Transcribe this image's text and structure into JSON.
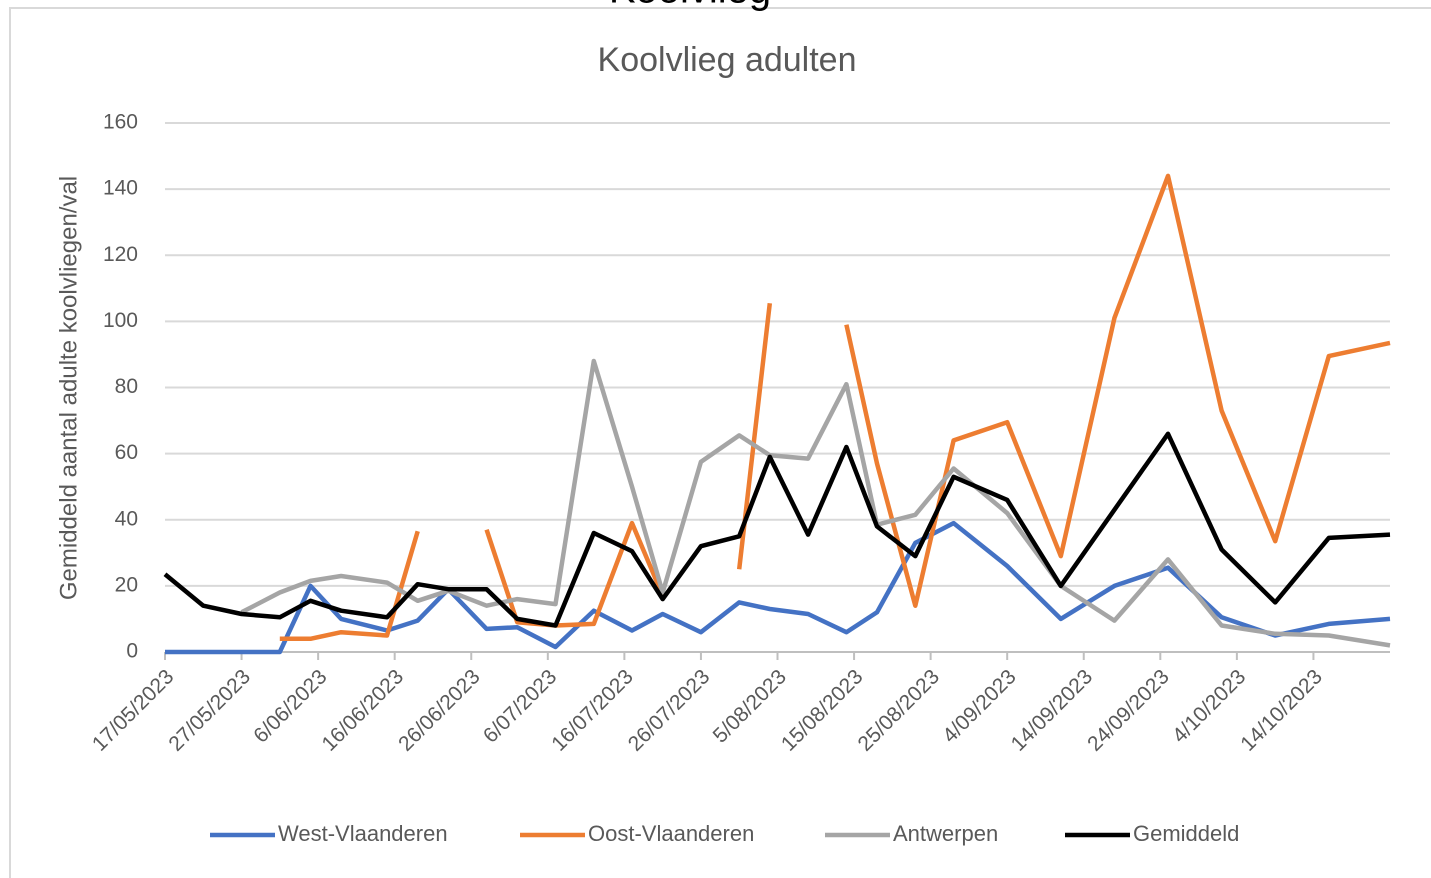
{
  "chart_data": {
    "type": "line",
    "header": "Koolvlieg",
    "title": "Koolvlieg adulten",
    "y_label": "Gemiddeld aantal adulte koolvliegen/val",
    "x": [
      "17/05/2023",
      "22/05/2023",
      "27/05/2023",
      "1/06/2023",
      "5/06/2023",
      "9/06/2023",
      "15/06/2023",
      "19/06/2023",
      "23/06/2023",
      "28/06/2023",
      "2/07/2023",
      "7/07/2023",
      "12/07/2023",
      "17/07/2023",
      "21/07/2023",
      "26/07/2023",
      "31/07/2023",
      "4/08/2023",
      "9/08/2023",
      "14/08/2023",
      "18/08/2023",
      "23/08/2023",
      "28/08/2023",
      "4/09/2023",
      "11/09/2023",
      "18/09/2023",
      "25/09/2023",
      "2/10/2023",
      "9/10/2023",
      "16/10/2023",
      "24/10/2023"
    ],
    "series": [
      {
        "name": "West-Vlaanderen",
        "color": "#4472c4",
        "values": [
          0,
          0,
          0,
          0,
          20,
          10,
          6.5,
          9.5,
          19,
          7,
          7.5,
          1.5,
          12.5,
          6.5,
          11.5,
          6,
          15,
          13,
          11.5,
          6,
          12,
          33,
          39,
          26,
          10,
          20,
          25.5,
          10.5,
          5,
          8.5,
          10
        ]
      },
      {
        "name": "Oost-Vlaanderen",
        "color": "#ed7d31",
        "values": [
          null,
          null,
          null,
          4,
          4,
          6,
          5,
          36.5,
          null,
          37,
          9,
          8,
          8.5,
          39,
          17,
          null,
          25,
          105.5,
          null,
          99,
          57,
          14,
          64,
          69.5,
          29,
          101,
          144,
          73,
          33.5,
          89.5,
          93.5
        ]
      },
      {
        "name": "Antwerpen",
        "color": "#a5a5a5",
        "values": [
          null,
          null,
          12,
          18,
          21.5,
          23,
          21,
          15.5,
          18.5,
          14,
          16,
          14.5,
          88,
          50,
          18,
          57.5,
          65.5,
          59.5,
          58.5,
          81,
          38.5,
          41.5,
          55.5,
          42,
          20,
          9.5,
          28,
          8,
          5.5,
          5,
          2
        ]
      },
      {
        "name": "Gemiddeld",
        "color": "#000000",
        "values": [
          23.5,
          14,
          11.5,
          10.5,
          15.5,
          12.5,
          10.5,
          20.5,
          19,
          19,
          10,
          8,
          36,
          30.5,
          16,
          32,
          35,
          59,
          35.5,
          62,
          38,
          29,
          53,
          46,
          20,
          43,
          66,
          31,
          15,
          34.5,
          35.5
        ]
      }
    ],
    "xlim": [
      "17/05/2023",
      "24/10/2023"
    ],
    "xticks": [
      "17/05/2023",
      "27/05/2023",
      "6/06/2023",
      "16/06/2023",
      "26/06/2023",
      "6/07/2023",
      "16/07/2023",
      "26/07/2023",
      "5/08/2023",
      "15/08/2023",
      "25/08/2023",
      "4/09/2023",
      "14/09/2023",
      "24/09/2023",
      "4/10/2023",
      "14/10/2023"
    ],
    "ylim": [
      0,
      160
    ],
    "yticks": [
      0,
      20,
      40,
      60,
      80,
      100,
      120,
      140,
      160
    ],
    "grid": true,
    "legend": "bottom"
  }
}
